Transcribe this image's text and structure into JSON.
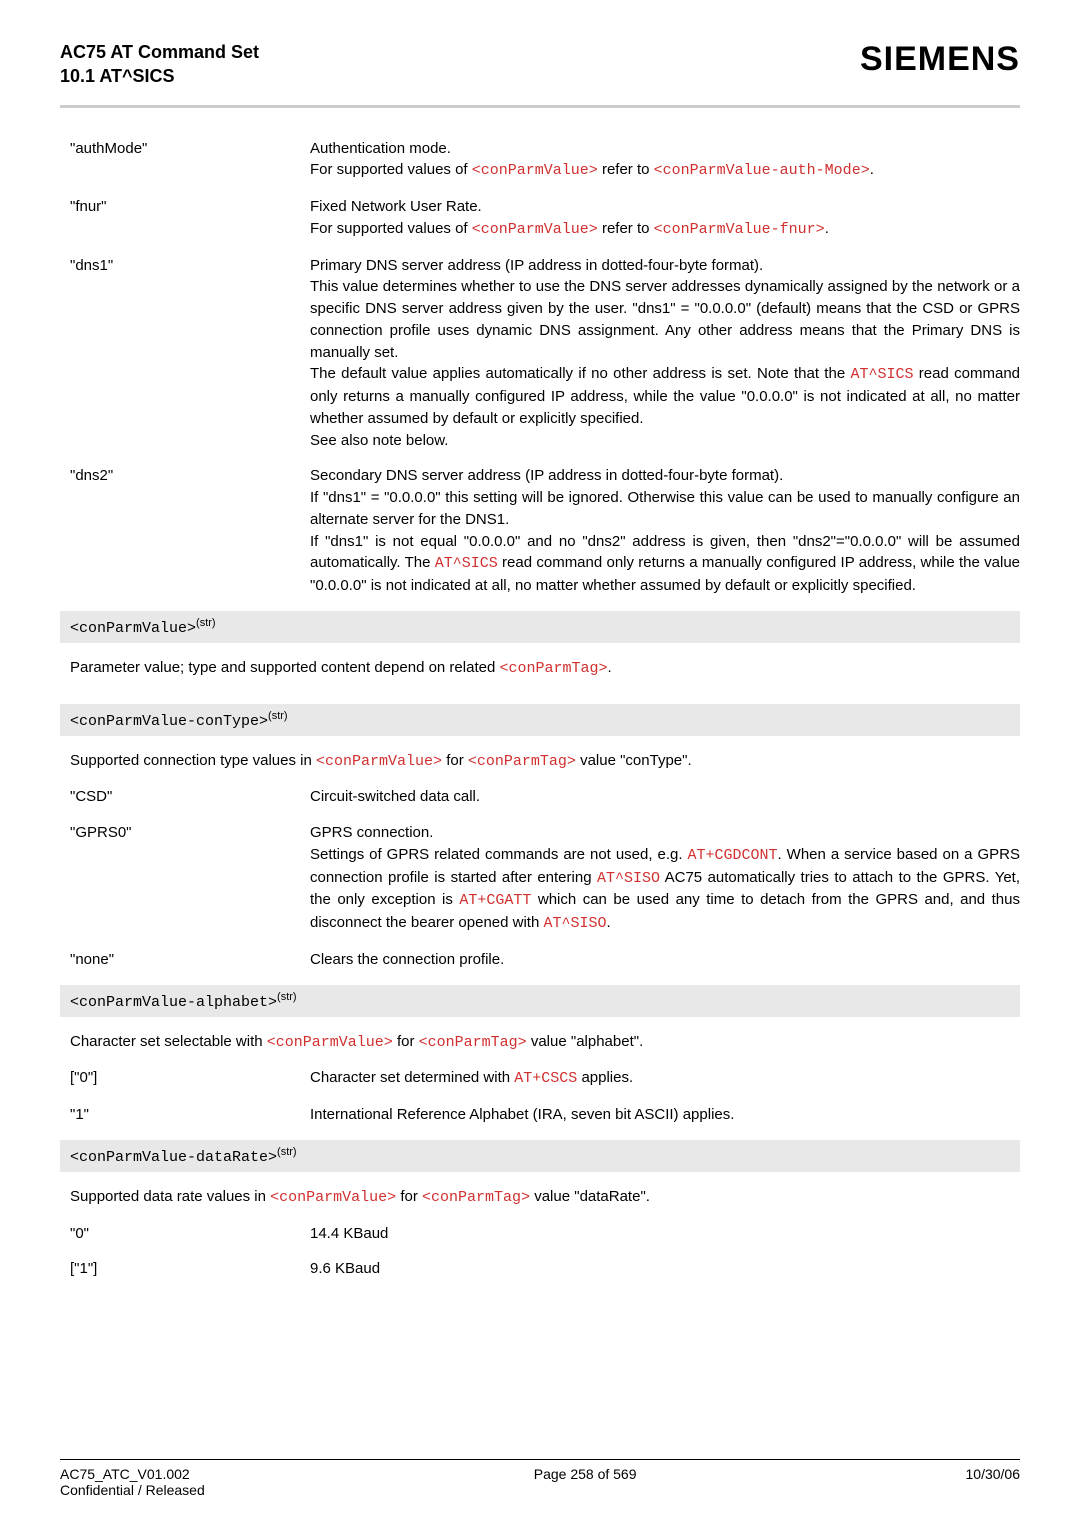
{
  "header": {
    "title_line1": "AC75 AT Command Set",
    "title_line2": "10.1 AT^SICS",
    "brand": "SIEMENS"
  },
  "defs": [
    {
      "term": "\"authMode\"",
      "body_html": "Authentication mode.<br>For supported values of <span class=\"code\">&lt;conParmValue&gt;</span> refer to <span class=\"code\">&lt;conParmValue-auth-Mode&gt;</span>."
    },
    {
      "term": "\"fnur\"",
      "body_html": "Fixed Network User Rate.<br>For supported values of <span class=\"code\">&lt;conParmValue&gt;</span> refer to <span class=\"code\">&lt;conParmValue-fnur&gt;</span>."
    },
    {
      "term": "\"dns1\"",
      "body_html": "Primary DNS server address (IP address in dotted-four-byte format).<br>This value determines whether to use the DNS server addresses dynamically assigned by the network or a specific DNS server address given by the user. \"dns1\" = \"0.0.0.0\" (default) means that the CSD or GPRS connection profile uses dynamic DNS assignment. Any other address means that the Primary DNS is manually set.<br>The default value applies automatically if no other address is set. Note that the <span class=\"code\">AT^SICS</span> read command only returns a manually configured IP address, while the value \"0.0.0.0\" is not indicated at all, no matter whether assumed by default or explicitly specified.<br>See also note below."
    },
    {
      "term": "\"dns2\"",
      "body_html": "Secondary DNS server address (IP address in dotted-four-byte format).<br>If \"dns1\" = \"0.0.0.0\" this setting will be ignored. Otherwise this value can be used to manually configure an alternate server for the DNS1.<br>If \"dns1\" is not equal \"0.0.0.0\" and no \"dns2\" address is given, then \"dns2\"=\"0.0.0.0\" will be assumed automatically. The <span class=\"code\">AT^SICS</span> read command only returns a manually configured IP address, while the value \"0.0.0.0\" is not indicated at all, no matter whether assumed by default or explicitly specified."
    }
  ],
  "param_a": {
    "header_html": "&lt;conParmValue&gt;<sup>(str)</sup>",
    "desc_html": "Parameter value; type and supported content depend on related <span class=\"code\">&lt;conParmTag&gt;</span>."
  },
  "param_b": {
    "header_html": "&lt;conParmValue-conType&gt;<sup>(str)</sup>",
    "desc_html": "Supported connection type values in <span class=\"code\">&lt;conParmValue&gt;</span> for <span class=\"code\">&lt;conParmTag&gt;</span> value \"conType\".",
    "rows": [
      {
        "term": "\"CSD\"",
        "body_html": "Circuit-switched data call."
      },
      {
        "term": "\"GPRS0\"",
        "body_html": "GPRS connection.<br>Settings of GPRS related commands are not used, e.g. <span class=\"code\">AT+CGDCONT</span>. When a service based on a GPRS connection profile is started after entering <span class=\"code\">AT^SISO</span> AC75 automatically tries to attach to the GPRS. Yet, the only exception is <span class=\"code\">AT+CGATT</span> which can be used any time to detach from the GPRS and, and thus disconnect the bearer opened with <span class=\"code\">AT^SISO</span>."
      },
      {
        "term": "\"none\"",
        "body_html": "Clears the connection profile."
      }
    ]
  },
  "param_c": {
    "header_html": "&lt;conParmValue-alphabet&gt;<sup>(str)</sup>",
    "desc_html": "Character set selectable with <span class=\"code\">&lt;conParmValue&gt;</span> for <span class=\"code\">&lt;conParmTag&gt;</span> value \"alphabet\".",
    "rows": [
      {
        "term": "[\"0\"]",
        "body_html": "Character set determined with <span class=\"code\">AT+CSCS</span> applies."
      },
      {
        "term": "\"1\"",
        "body_html": "International Reference Alphabet (IRA, seven bit ASCII) applies."
      }
    ]
  },
  "param_d": {
    "header_html": "&lt;conParmValue-dataRate&gt;<sup>(str)</sup>",
    "desc_html": "Supported data rate values in <span class=\"code\">&lt;conParmValue&gt;</span> for <span class=\"code\">&lt;conParmTag&gt;</span> value \"dataRate\".",
    "rows": [
      {
        "term": "\"0\"",
        "body_html": "14.4 KBaud"
      },
      {
        "term": "[\"1\"]",
        "body_html": "9.6 KBaud"
      }
    ]
  },
  "footer": {
    "left1": "AC75_ATC_V01.002",
    "left2": "Confidential / Released",
    "center": "Page 258 of 569",
    "right": "10/30/06"
  }
}
